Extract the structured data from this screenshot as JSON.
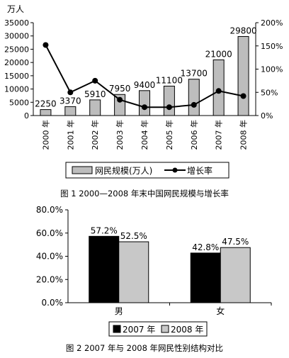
{
  "charts": {
    "chart1_caption": "图 1  2000—2008 年末中国网民规模与增长率",
    "chart2_caption": "图 2   2007 年与 2008 年网民性别结构对比"
  },
  "chart_data": [
    {
      "type": "bar",
      "subtype": "bar+line",
      "categories": [
        "2000 年",
        "2001 年",
        "2002 年",
        "2003 年",
        "2004 年",
        "2005 年",
        "2006 年",
        "2007 年",
        "2008 年"
      ],
      "series": [
        {
          "name": "网民规模(万人)",
          "type": "bar",
          "axis": "left",
          "color": "#bdbdbd",
          "values": [
            2250,
            3370,
            5910,
            7950,
            9400,
            11100,
            13700,
            21000,
            29800
          ]
        },
        {
          "name": "增长率",
          "type": "line",
          "axis": "right",
          "color": "#000000",
          "values": [
            152,
            50,
            75,
            34,
            18,
            18,
            23,
            53,
            42
          ]
        }
      ],
      "data_labels": [
        "2250",
        "3370",
        "5910",
        "7950",
        "9400",
        "11100",
        "13700",
        "21000",
        "29800"
      ],
      "y_left": {
        "unit": "万人",
        "ylim": [
          0,
          35000
        ],
        "ticks": [
          "0",
          "5000",
          "10000",
          "15000",
          "20000",
          "25000",
          "30000",
          "35000"
        ]
      },
      "y_right": {
        "ylim": [
          0,
          200
        ],
        "ticks": [
          "0%",
          "50%",
          "100%",
          "150%",
          "200%"
        ]
      },
      "legend": "bottom",
      "grid": false
    },
    {
      "type": "bar",
      "categories": [
        "男",
        "女"
      ],
      "series": [
        {
          "name": "2007 年",
          "color": "#000000",
          "values": [
            57.2,
            42.8
          ]
        },
        {
          "name": "2008 年",
          "color": "#c8c8c8",
          "values": [
            52.5,
            47.5
          ]
        }
      ],
      "data_labels": [
        [
          "57.2%",
          "42.8%"
        ],
        [
          "52.5%",
          "47.5%"
        ]
      ],
      "ylim": [
        0,
        80
      ],
      "yticks": [
        "0.0%",
        "20.0%",
        "40.0%",
        "60.0%",
        "80.0%"
      ],
      "legend": "bottom",
      "grid": false
    }
  ]
}
